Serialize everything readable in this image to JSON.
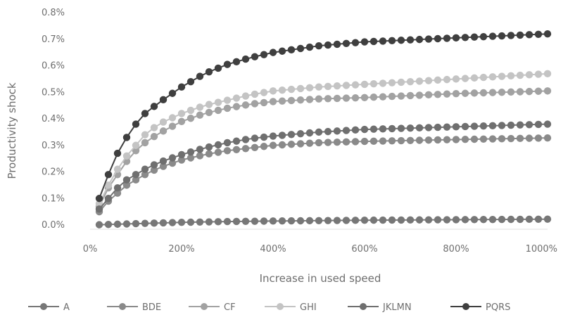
{
  "chart_data": {
    "type": "line",
    "title": "",
    "xlabel": "Increase in used speed",
    "ylabel": "Productivity shock",
    "x_tick_labels": [
      "0%",
      "200%",
      "400%",
      "600%",
      "800%",
      "1000%"
    ],
    "y_tick_labels": [
      "0.0%",
      "0.1%",
      "0.2%",
      "0.3%",
      "0.4%",
      "0.5%",
      "0.6%",
      "0.7%",
      "0.8%"
    ],
    "xlim": [
      0,
      1000
    ],
    "ylim": [
      0,
      0.8
    ],
    "x_unit": "percent increase",
    "y_unit": "percent",
    "grid": false,
    "legend_position": "bottom",
    "marker": "circle",
    "x_start": 20,
    "x_step": 20,
    "x_end": 1000,
    "series": [
      {
        "name": "A",
        "color": "#777777",
        "points": [
          [
            20,
            0.001
          ],
          [
            100,
            0.005
          ],
          [
            200,
            0.01
          ],
          [
            300,
            0.013
          ],
          [
            400,
            0.015
          ],
          [
            600,
            0.018
          ],
          [
            800,
            0.02
          ],
          [
            1000,
            0.022
          ]
        ]
      },
      {
        "name": "BDE",
        "color": "#8a8a8a",
        "points": [
          [
            20,
            0.05
          ],
          [
            40,
            0.09
          ],
          [
            60,
            0.12
          ],
          [
            80,
            0.15
          ],
          [
            100,
            0.17
          ],
          [
            120,
            0.19
          ],
          [
            150,
            0.215
          ],
          [
            200,
            0.245
          ],
          [
            250,
            0.265
          ],
          [
            300,
            0.28
          ],
          [
            350,
            0.29
          ],
          [
            400,
            0.3
          ],
          [
            500,
            0.31
          ],
          [
            600,
            0.315
          ],
          [
            800,
            0.322
          ],
          [
            1000,
            0.328
          ]
        ]
      },
      {
        "name": "CF",
        "color": "#a2a2a2",
        "points": [
          [
            20,
            0.07
          ],
          [
            40,
            0.14
          ],
          [
            60,
            0.19
          ],
          [
            80,
            0.24
          ],
          [
            100,
            0.28
          ],
          [
            120,
            0.31
          ],
          [
            150,
            0.345
          ],
          [
            200,
            0.39
          ],
          [
            250,
            0.42
          ],
          [
            300,
            0.44
          ],
          [
            350,
            0.455
          ],
          [
            400,
            0.465
          ],
          [
            500,
            0.475
          ],
          [
            600,
            0.48
          ],
          [
            800,
            0.495
          ],
          [
            1000,
            0.505
          ]
        ]
      },
      {
        "name": "GHI",
        "color": "#c4c4c4",
        "points": [
          [
            20,
            0.08
          ],
          [
            40,
            0.15
          ],
          [
            60,
            0.21
          ],
          [
            80,
            0.26
          ],
          [
            100,
            0.3
          ],
          [
            120,
            0.34
          ],
          [
            150,
            0.38
          ],
          [
            200,
            0.42
          ],
          [
            250,
            0.45
          ],
          [
            300,
            0.47
          ],
          [
            350,
            0.49
          ],
          [
            400,
            0.505
          ],
          [
            500,
            0.52
          ],
          [
            600,
            0.53
          ],
          [
            800,
            0.55
          ],
          [
            1000,
            0.57
          ]
        ]
      },
      {
        "name": "JKLMN",
        "color": "#6f6f6f",
        "points": [
          [
            20,
            0.06
          ],
          [
            40,
            0.1
          ],
          [
            60,
            0.14
          ],
          [
            80,
            0.17
          ],
          [
            100,
            0.19
          ],
          [
            120,
            0.21
          ],
          [
            150,
            0.235
          ],
          [
            200,
            0.265
          ],
          [
            250,
            0.29
          ],
          [
            300,
            0.31
          ],
          [
            350,
            0.325
          ],
          [
            400,
            0.335
          ],
          [
            500,
            0.35
          ],
          [
            600,
            0.36
          ],
          [
            800,
            0.37
          ],
          [
            1000,
            0.38
          ]
        ]
      },
      {
        "name": "PQRS",
        "color": "#3f3f3f",
        "points": [
          [
            20,
            0.1
          ],
          [
            40,
            0.19
          ],
          [
            60,
            0.27
          ],
          [
            80,
            0.33
          ],
          [
            100,
            0.38
          ],
          [
            120,
            0.42
          ],
          [
            150,
            0.46
          ],
          [
            200,
            0.52
          ],
          [
            250,
            0.57
          ],
          [
            300,
            0.605
          ],
          [
            350,
            0.63
          ],
          [
            400,
            0.65
          ],
          [
            500,
            0.675
          ],
          [
            600,
            0.69
          ],
          [
            800,
            0.705
          ],
          [
            1000,
            0.72
          ]
        ]
      }
    ]
  }
}
